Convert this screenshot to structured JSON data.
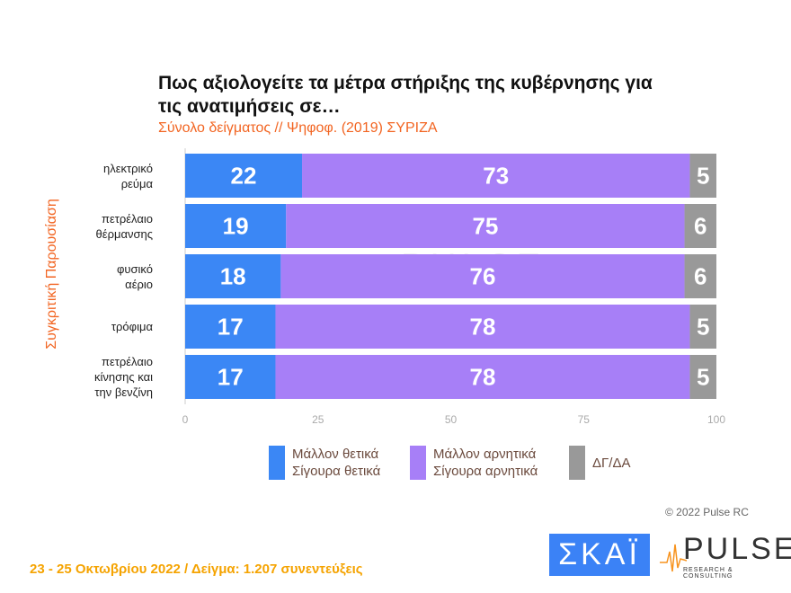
{
  "chart_data": {
    "type": "bar",
    "orientation": "horizontal",
    "stacked": true,
    "title": "Πως αξιολογείτε τα μέτρα στήριξης της κυβέρνησης για τις ανατιμήσεις σε…",
    "subtitle": "Σύνολο δείγματος // Ψηφοφ. (2019)  ΣΥΡΙΖΑ",
    "ylabel": "Συγκριτική Παρουσίαση",
    "categories": [
      "ηλεκτρικό ρεύμα",
      "πετρέλαιο θέρμανσης",
      "φυσικό αέριο",
      "τρόφιμα",
      "πετρέλαιο κίνησης και την βενζίνη"
    ],
    "xlim": [
      0,
      100
    ],
    "xticks": [
      "0",
      "25",
      "50",
      "75",
      "100"
    ],
    "series": [
      {
        "name": "Μάλλον θετικά Σίγουρα θετικά",
        "color": "#3b87f5",
        "values": [
          22,
          19,
          18,
          17,
          17
        ]
      },
      {
        "name": "Μάλλον αρνητικά Σίγουρα αρνητικά",
        "color": "#a77ff7",
        "values": [
          73,
          75,
          76,
          78,
          78
        ]
      },
      {
        "name": "ΔΓ/ΔΑ",
        "color": "#999999",
        "values": [
          5,
          6,
          6,
          5,
          5
        ]
      }
    ],
    "legend": "bottom"
  },
  "legend_lines": [
    [
      "Μάλλον θετικά",
      "Σίγουρα θετικά"
    ],
    [
      "Μάλλον αρνητικά",
      "Σίγουρα αρνητικά"
    ],
    [
      "ΔΓ/ΔΑ"
    ]
  ],
  "category_lines": [
    [
      "ηλεκτρικό",
      "ρεύμα"
    ],
    [
      "πετρέλαιο",
      "θέρμανσης"
    ],
    [
      "φυσικό",
      "αέριο"
    ],
    [
      "τρόφιμα"
    ],
    [
      "πετρέλαιο",
      "κίνησης και",
      "την βενζίνη"
    ]
  ],
  "copyright": "© 2022 Pulse RC",
  "footer": "23 - 25 Οκτωβρίου  2022  /  Δείγμα:  1.207 συνεντεύξεις",
  "logos": {
    "skai": "ΣΚΑΪ",
    "pulse": "PULSE",
    "pulse_sub": "RESEARCH & CONSULTING"
  }
}
